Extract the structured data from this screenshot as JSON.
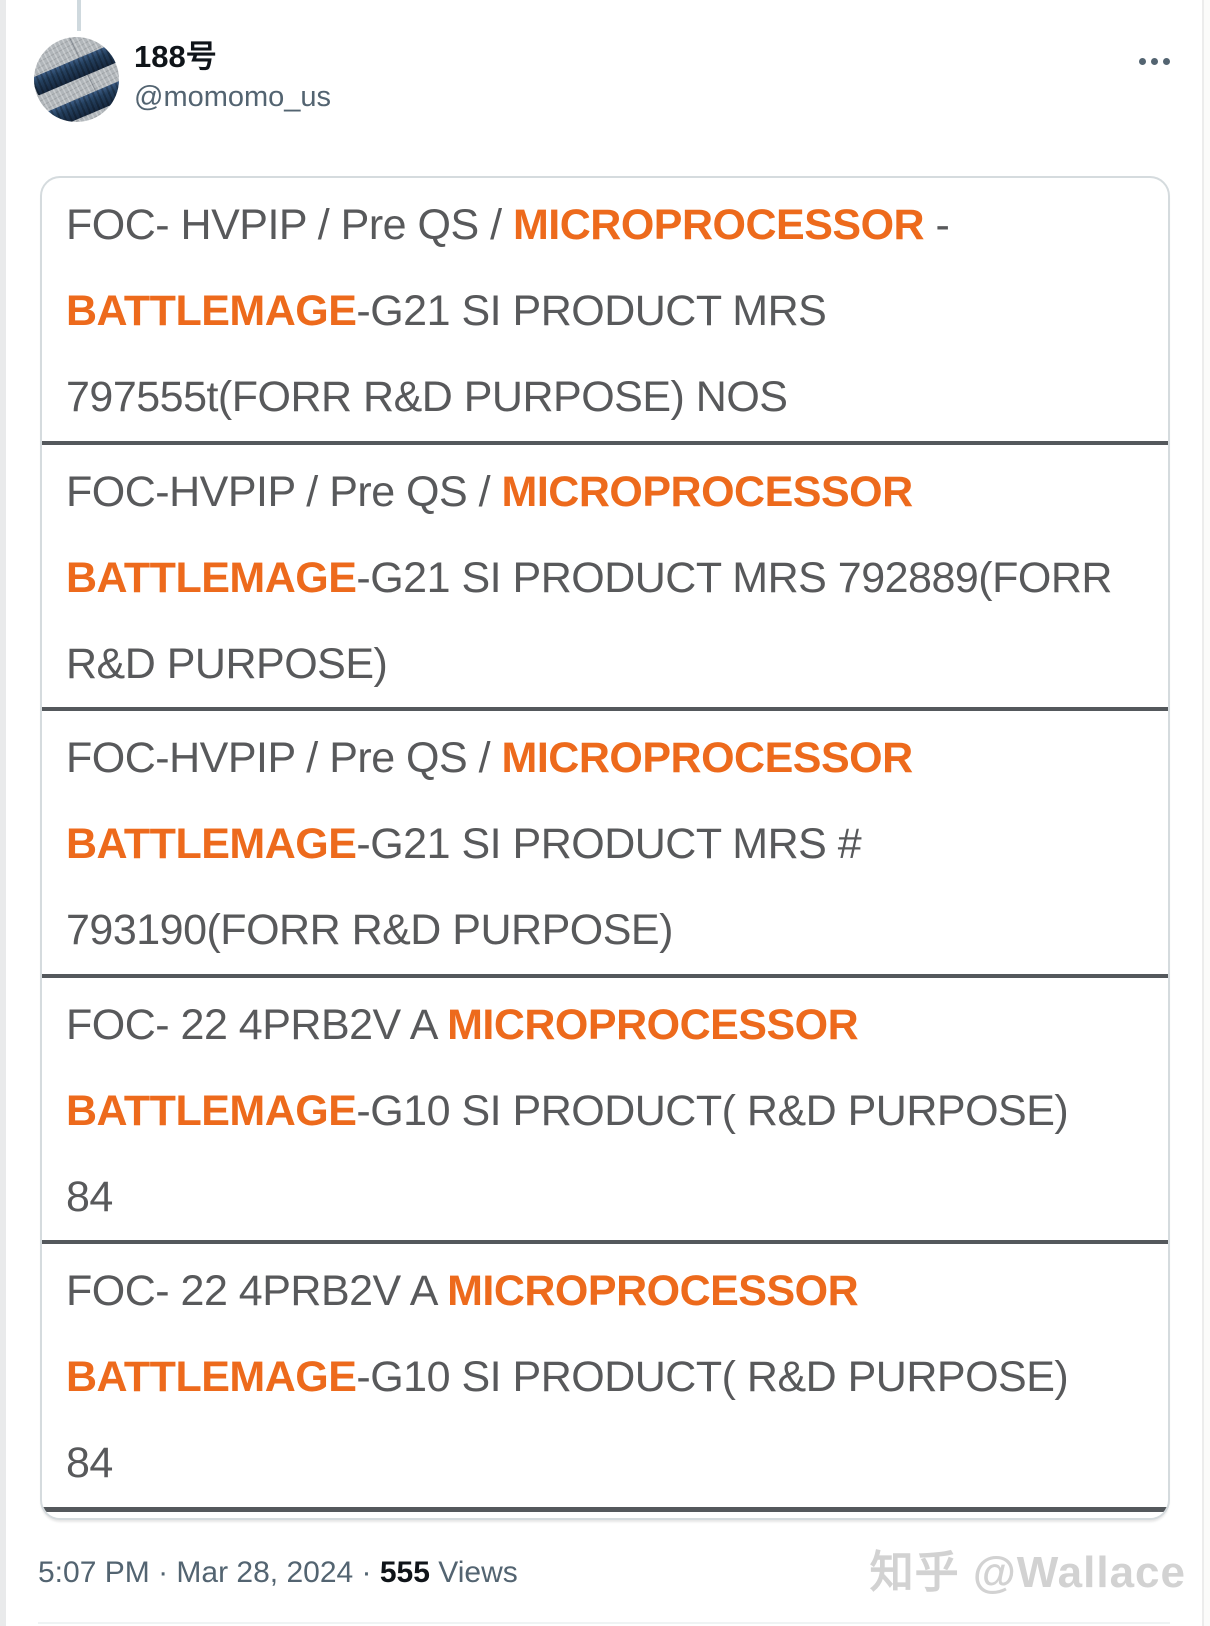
{
  "tweet": {
    "author": {
      "name": "188号",
      "handle": "@momomo_us"
    },
    "table": {
      "text_color": "#58595B",
      "highlight_color": "#ED6A1C",
      "separator_color": "#54585C",
      "rows": [
        {
          "lines": [
            [
              {
                "t": "FOC- HVPIP / Pre QS / "
              },
              {
                "t": "MICROPROCESSOR",
                "hl": true
              },
              {
                "t": " -"
              }
            ],
            [
              {
                "t": "BATTLEMAGE",
                "hl": true
              },
              {
                "t": "-G21 SI PRODUCT MRS"
              }
            ],
            [
              {
                "t": "797555t(FORR R&D PURPOSE) NOS"
              }
            ]
          ]
        },
        {
          "lines": [
            [
              {
                "t": "FOC-HVPIP / Pre QS / "
              },
              {
                "t": "MICROPROCESSOR",
                "hl": true
              }
            ],
            [
              {
                "t": "BATTLEMAGE",
                "hl": true
              },
              {
                "t": "-G21 SI PRODUCT MRS 792889(FORR"
              }
            ],
            [
              {
                "t": "R&D PURPOSE)"
              }
            ]
          ]
        },
        {
          "lines": [
            [
              {
                "t": "FOC-HVPIP / Pre QS / "
              },
              {
                "t": "MICROPROCESSOR",
                "hl": true
              }
            ],
            [
              {
                "t": "BATTLEMAGE",
                "hl": true
              },
              {
                "t": "-G21 SI PRODUCT MRS #"
              }
            ],
            [
              {
                "t": "793190(FORR R&D PURPOSE)"
              }
            ]
          ]
        },
        {
          "lines": [
            [
              {
                "t": "FOC- 22 4PRB2V A "
              },
              {
                "t": "MICROPROCESSOR",
                "hl": true
              }
            ],
            [
              {
                "t": "BATTLEMAGE",
                "hl": true
              },
              {
                "t": "-G10 SI PRODUCT( R&D PURPOSE)"
              }
            ],
            [
              {
                "t": "84"
              }
            ]
          ]
        },
        {
          "lines": [
            [
              {
                "t": "FOC- 22 4PRB2V A "
              },
              {
                "t": "MICROPROCESSOR",
                "hl": true
              }
            ],
            [
              {
                "t": "BATTLEMAGE",
                "hl": true
              },
              {
                "t": "-G10 SI PRODUCT( R&D PURPOSE)"
              }
            ],
            [
              {
                "t": "84"
              }
            ]
          ]
        }
      ]
    },
    "footer": {
      "time": "5:07 PM",
      "sep1": " · ",
      "date": "Mar 28, 2024",
      "sep2": " · ",
      "views_count": "555",
      "views_label": " Views"
    },
    "watermark": "知乎 @Wallace"
  }
}
